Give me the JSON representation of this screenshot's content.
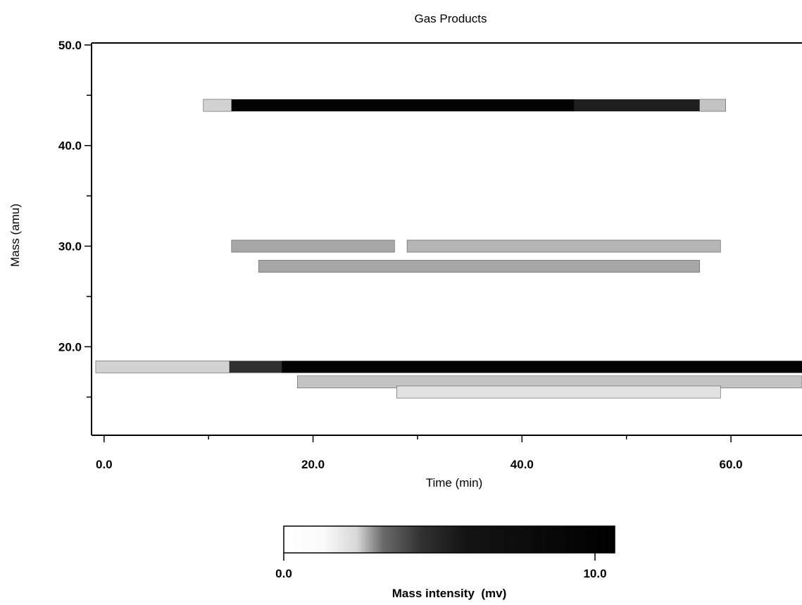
{
  "chart_data": {
    "type": "heatmap",
    "title": "Gas Products",
    "xlabel": "Time (min)",
    "ylabel": "Mass (amu)",
    "xlim": [
      -1.2,
      66.8
    ],
    "ylim": [
      11.2,
      50.2
    ],
    "x_ticks": [
      0.0,
      20.0,
      40.0,
      60.0
    ],
    "x_tick_labels": [
      "0.0",
      "20.0",
      "40.0",
      "60.0"
    ],
    "y_ticks": [
      20.0,
      30.0,
      40.0,
      50.0
    ],
    "y_tick_labels": [
      "20.0",
      "30.0",
      "40.0",
      "50.0"
    ],
    "grid": false,
    "colorbar": {
      "label": "Mass intensity  (mv)",
      "range": [
        0.0,
        11.5
      ],
      "tick_values": [
        0.0,
        10.0
      ],
      "tick_labels": [
        "0.0",
        "10.0"
      ],
      "colormap": "white-to-black"
    },
    "series": [
      {
        "mass": 44,
        "segments": [
          {
            "t_start": 9.5,
            "t_end": 12.2,
            "intensity": 1.5
          },
          {
            "t_start": 12.2,
            "t_end": 45.0,
            "intensity": 11.0
          },
          {
            "t_start": 45.0,
            "t_end": 57.0,
            "intensity": 9.0
          },
          {
            "t_start": 57.0,
            "t_end": 59.5,
            "intensity": 2.0
          }
        ]
      },
      {
        "mass": 30,
        "segments": [
          {
            "t_start": 12.2,
            "t_end": 27.8,
            "intensity": 3.0
          },
          {
            "t_start": 29.0,
            "t_end": 59.0,
            "intensity": 2.5
          }
        ]
      },
      {
        "mass": 28,
        "segments": [
          {
            "t_start": 14.8,
            "t_end": 57.0,
            "intensity": 3.0
          }
        ]
      },
      {
        "mass": 18,
        "segments": [
          {
            "t_start": -0.8,
            "t_end": 12.0,
            "intensity": 1.5
          },
          {
            "t_start": 12.0,
            "t_end": 17.0,
            "intensity": 8.0
          },
          {
            "t_start": 17.0,
            "t_end": 66.8,
            "intensity": 11.0
          }
        ]
      },
      {
        "mass": 16.5,
        "segments": [
          {
            "t_start": 18.5,
            "t_end": 66.8,
            "intensity": 2.0
          }
        ]
      },
      {
        "mass": 15.5,
        "segments": [
          {
            "t_start": 28.0,
            "t_end": 59.0,
            "intensity": 1.0
          }
        ]
      }
    ]
  }
}
